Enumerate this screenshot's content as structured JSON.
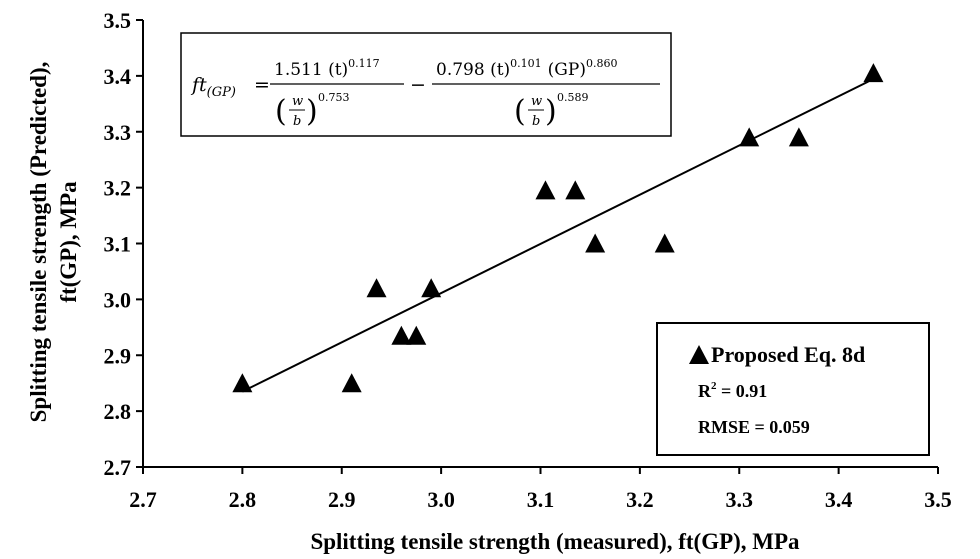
{
  "chart_data": {
    "type": "scatter",
    "xlabel": "Splitting tensile strength (measured), ft(GP), MPa",
    "ylabel": [
      "Splitting tensile strength (Predicted),",
      "ft(GP), MPa"
    ],
    "xlim": [
      2.7,
      3.5
    ],
    "ylim": [
      2.7,
      3.5
    ],
    "x_ticks": [
      "2.7",
      "2.8",
      "2.9",
      "3.0",
      "3.1",
      "3.2",
      "3.3",
      "3.4",
      "3.5"
    ],
    "y_ticks": [
      "2.7",
      "2.8",
      "2.9",
      "3.0",
      "3.1",
      "3.2",
      "3.3",
      "3.4",
      "3.5"
    ],
    "grid": false,
    "series": [
      {
        "name": "Proposed Eq. 8d",
        "marker": "triangle",
        "color": "#000000",
        "points": [
          [
            2.8,
            2.85
          ],
          [
            2.91,
            2.85
          ],
          [
            2.935,
            3.02
          ],
          [
            2.96,
            2.935
          ],
          [
            2.975,
            2.935
          ],
          [
            2.99,
            3.02
          ],
          [
            3.105,
            3.195
          ],
          [
            3.135,
            3.195
          ],
          [
            3.155,
            3.1
          ],
          [
            3.225,
            3.1
          ],
          [
            3.31,
            3.29
          ],
          [
            3.36,
            3.29
          ],
          [
            3.435,
            3.405
          ]
        ]
      }
    ],
    "fit_line": {
      "from": [
        2.8,
        2.835
      ],
      "to": [
        3.43,
        3.39
      ]
    },
    "legend": {
      "placement": "bottom-right",
      "label": "Proposed Eq. 8d",
      "r2_label": "R",
      "r2_sup": "2",
      "r2_value": " = 0.91",
      "rmse": "RMSE = 0.059"
    },
    "equation": {
      "placement": "top-left",
      "lhs_main": "ft",
      "lhs_sub": "(GP)",
      "eq_sign": "=",
      "minus_sign": "−",
      "term1_num": "1.511 (t)",
      "term1_num_exp": "0.117",
      "term1_den_exp": "0.753",
      "term2_num_a": "0.798 (t)",
      "term2_num_a_exp": "0.101",
      "term2_num_b": "(GP)",
      "term2_num_b_exp": "0.860",
      "term2_den_exp": "0.589",
      "w": "w",
      "b": "b",
      "lparen": "(",
      "rparen": ")"
    }
  }
}
